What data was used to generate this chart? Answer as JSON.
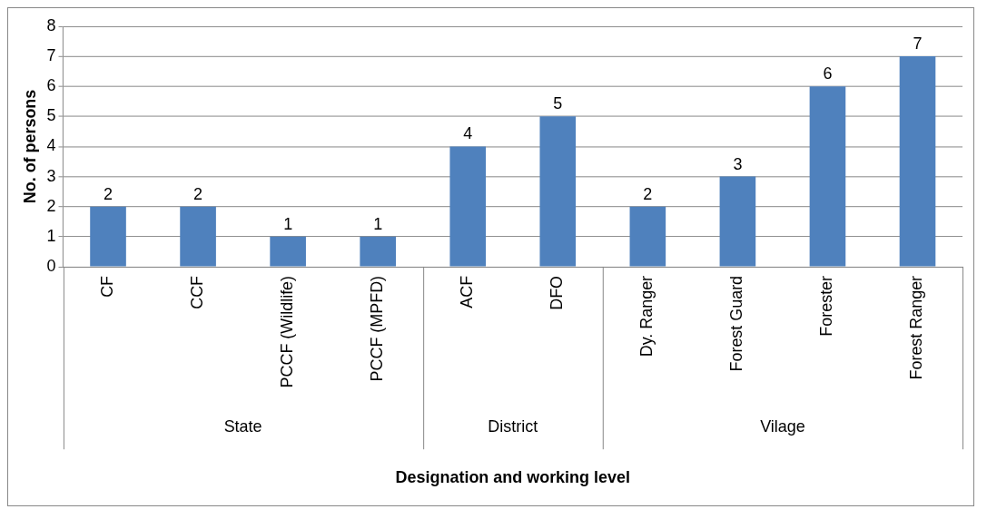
{
  "chart_data": {
    "type": "bar",
    "xlabel": "Designation and working level",
    "ylabel": "No. of persons",
    "categories": [
      "CF",
      "CCF",
      "PCCF (Wildlife)",
      "PCCF (MPFD)",
      "ACF",
      "DFO",
      "Dy. Ranger",
      "Forest Guard",
      "Forester",
      "Forest Ranger"
    ],
    "values": [
      2,
      2,
      1,
      1,
      4,
      5,
      2,
      3,
      6,
      7
    ],
    "color": "#4f81bd",
    "ylim": [
      0,
      8
    ],
    "yticks": [
      0,
      1,
      2,
      3,
      4,
      5,
      6,
      7,
      8
    ],
    "grid": "y",
    "legend": false,
    "data_labels": true,
    "annotations": [
      "State",
      "District",
      "Vilage"
    ]
  }
}
